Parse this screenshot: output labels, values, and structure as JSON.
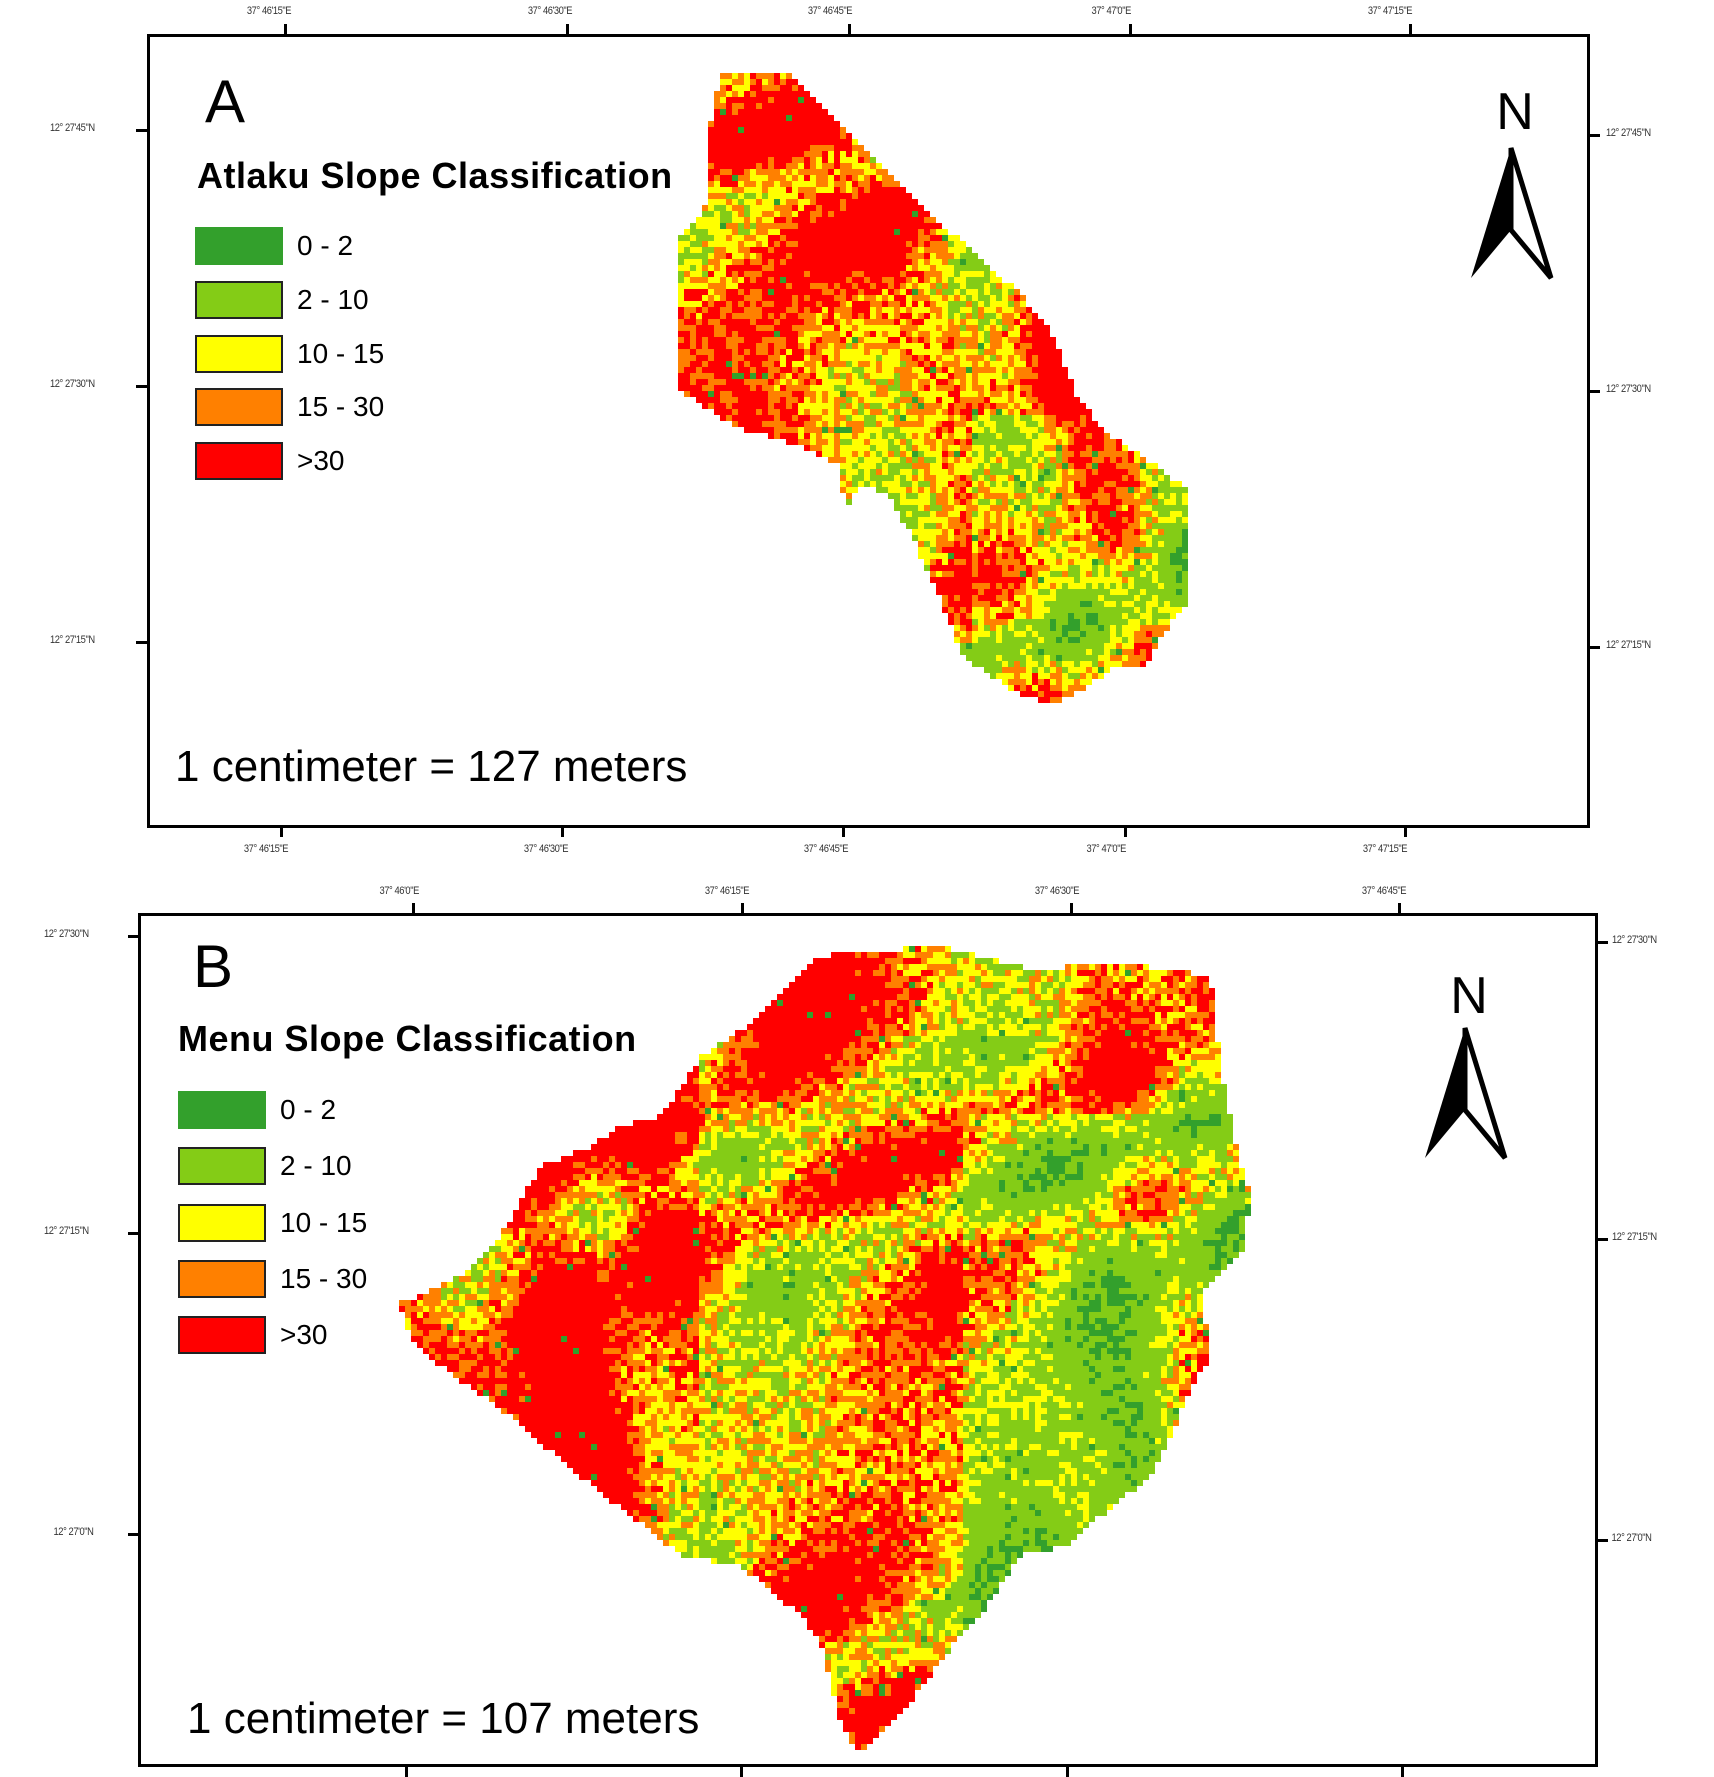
{
  "chart_data": [
    {
      "type": "heatmap",
      "panel": "A",
      "title": "Atlaku Slope Classification",
      "legend": [
        {
          "label": "0 - 2",
          "color": "#33a02c"
        },
        {
          "label": "2 - 10",
          "color": "#84cc16"
        },
        {
          "label": "10 - 15",
          "color": "#ffff00"
        },
        {
          "label": "15 - 30",
          "color": "#ff8000"
        },
        {
          "label": ">30",
          "color": "#ff0000"
        }
      ],
      "scale": "1 centimeter = 127 meters",
      "x_ticks_top": [
        "37° 46'15\"E",
        "37° 46'30\"E",
        "37° 46'45\"E",
        "37° 47'0\"E",
        "37° 47'15\"E"
      ],
      "x_ticks_bottom": [
        "37° 46'15\"E",
        "37° 46'30\"E",
        "37° 46'45\"E",
        "37° 47'0\"E",
        "37° 47'15\"E"
      ],
      "y_ticks_left": [
        "12° 27'45\"N",
        "12° 27'30\"N",
        "12° 27'15\"N"
      ],
      "y_ticks_right": [
        "12° 27'45\"N",
        "12° 27'30\"N",
        "12° 27'15\"N"
      ],
      "class_share_estimate": {
        ">30": 0.45,
        "15 - 30": 0.25,
        "10 - 15": 0.14,
        "2 - 10": 0.14,
        "0 - 2": 0.02
      }
    },
    {
      "type": "heatmap",
      "panel": "B",
      "title": "Menu Slope Classification",
      "legend": [
        {
          "label": "0 - 2",
          "color": "#33a02c"
        },
        {
          "label": "2 - 10",
          "color": "#84cc16"
        },
        {
          "label": "10 - 15",
          "color": "#ffff00"
        },
        {
          "label": "15 - 30",
          "color": "#ff8000"
        },
        {
          "label": ">30",
          "color": "#ff0000"
        }
      ],
      "scale": "1 centimeter = 107 meters",
      "x_ticks_top": [
        "37° 46'0\"E",
        "37° 46'15\"E",
        "37° 46'30\"E",
        "37° 46'45\"E"
      ],
      "y_ticks_left": [
        "12° 27'30\"N",
        "12° 27'15\"N",
        "12° 27'0\"N"
      ],
      "y_ticks_right": [
        "12° 27'30\"N",
        "12° 27'15\"N",
        "12° 27'0\"N"
      ],
      "class_share_estimate": {
        ">30": 0.42,
        "15 - 30": 0.22,
        "10 - 15": 0.17,
        "2 - 10": 0.17,
        "0 - 2": 0.02
      }
    }
  ],
  "panelA": {
    "letter": "A",
    "title": "Atlaku Slope Classification",
    "legend": [
      "0 - 2",
      "2 - 10",
      "10 - 15",
      "15 - 30",
      ">30"
    ],
    "scale": "1 centimeter = 127 meters",
    "north": "N",
    "top_ticks": [
      "37° 46'15\"E",
      "37° 46'30\"E",
      "37° 46'45\"E",
      "37° 47'0\"E",
      "37° 47'15\"E"
    ],
    "bottom_ticks": [
      "37° 46'15\"E",
      "37° 46'30\"E",
      "37° 46'45\"E",
      "37° 47'0\"E",
      "37° 47'15\"E"
    ],
    "left_ticks": [
      "12° 27'45\"N",
      "12° 27'30\"N",
      "12° 27'15\"N"
    ],
    "right_ticks": [
      "12° 27'45\"N",
      "12° 27'30\"N",
      "12° 27'15\"N"
    ]
  },
  "panelB": {
    "letter": "B",
    "title": "Menu Slope Classification",
    "legend": [
      "0 - 2",
      "2 - 10",
      "10 - 15",
      "15 - 30",
      ">30"
    ],
    "scale": "1 centimeter = 107 meters",
    "north": "N",
    "top_ticks": [
      "37° 46'0\"E",
      "37° 46'15\"E",
      "37° 46'30\"E",
      "37° 46'45\"E"
    ],
    "left_ticks": [
      "12° 27'30\"N",
      "12° 27'15\"N",
      "12° 27'0\"N"
    ],
    "right_ticks": [
      "12° 27'30\"N",
      "12° 27'15\"N",
      "12° 27'0\"N"
    ]
  },
  "colors": {
    "c0_2": "#33a02c",
    "c2_10": "#84cc16",
    "c10_15": "#ffff00",
    "c15_30": "#ff8000",
    "c30": "#ff0000"
  }
}
